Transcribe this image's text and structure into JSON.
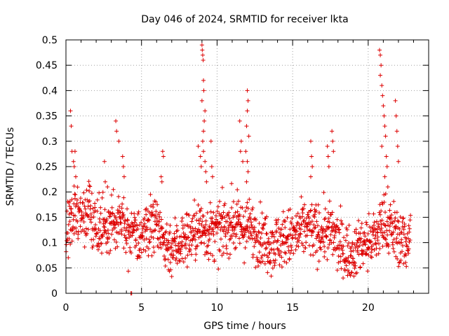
{
  "chart_data": {
    "type": "scatter",
    "title": "Day 046 of 2024, SRMTID for receiver lkta",
    "xlabel": "GPS time / hours",
    "ylabel": "SRMTID / TECUs",
    "xlim": [
      0,
      24
    ],
    "ylim": [
      0,
      0.5
    ],
    "grid": true,
    "marker": "+",
    "color": "#dd0000",
    "x_ticks": [
      0,
      5,
      10,
      15,
      20
    ],
    "x_tick_labels": [
      "0",
      "5",
      "10",
      "15",
      "20"
    ],
    "y_ticks": [
      0,
      0.05,
      0.1,
      0.15,
      0.2,
      0.25,
      0.3,
      0.35,
      0.4,
      0.45,
      0.5
    ],
    "y_tick_labels": [
      "0",
      "0.05",
      "0.1",
      "0.15",
      "0.2",
      "0.25",
      "0.3",
      "0.35",
      "0.4",
      "0.45",
      "0.5"
    ],
    "series": [
      {
        "name": "SRMTID",
        "baseline": [
          [
            0.0,
            0.12
          ],
          [
            0.5,
            0.15
          ],
          [
            1.0,
            0.16
          ],
          [
            1.5,
            0.17
          ],
          [
            2.0,
            0.12
          ],
          [
            2.5,
            0.13
          ],
          [
            3.0,
            0.14
          ],
          [
            3.5,
            0.14
          ],
          [
            4.0,
            0.13
          ],
          [
            4.5,
            0.12
          ],
          [
            5.0,
            0.11
          ],
          [
            5.5,
            0.13
          ],
          [
            6.0,
            0.13
          ],
          [
            6.5,
            0.1
          ],
          [
            7.0,
            0.09
          ],
          [
            7.5,
            0.1
          ],
          [
            8.0,
            0.11
          ],
          [
            8.5,
            0.12
          ],
          [
            9.0,
            0.13
          ],
          [
            9.5,
            0.12
          ],
          [
            10.0,
            0.12
          ],
          [
            10.5,
            0.13
          ],
          [
            11.0,
            0.14
          ],
          [
            11.5,
            0.13
          ],
          [
            12.0,
            0.13
          ],
          [
            12.5,
            0.12
          ],
          [
            13.0,
            0.11
          ],
          [
            13.5,
            0.1
          ],
          [
            14.0,
            0.1
          ],
          [
            14.5,
            0.11
          ],
          [
            15.0,
            0.11
          ],
          [
            15.5,
            0.12
          ],
          [
            16.0,
            0.13
          ],
          [
            16.5,
            0.12
          ],
          [
            17.0,
            0.12
          ],
          [
            17.5,
            0.12
          ],
          [
            18.0,
            0.1
          ],
          [
            18.5,
            0.08
          ],
          [
            19.0,
            0.08
          ],
          [
            19.5,
            0.1
          ],
          [
            20.0,
            0.1
          ],
          [
            20.5,
            0.11
          ],
          [
            21.0,
            0.14
          ],
          [
            21.5,
            0.13
          ],
          [
            22.0,
            0.11
          ],
          [
            22.5,
            0.1
          ],
          [
            22.8,
            0.12
          ]
        ],
        "spikes": [
          [
            0.3,
            0.36
          ],
          [
            0.35,
            0.33
          ],
          [
            0.4,
            0.28
          ],
          [
            0.5,
            0.26
          ],
          [
            0.6,
            0.28
          ],
          [
            0.55,
            0.25
          ],
          [
            0.65,
            0.23
          ],
          [
            2.55,
            0.26
          ],
          [
            2.6,
            0.22
          ],
          [
            2.75,
            0.21
          ],
          [
            3.3,
            0.34
          ],
          [
            3.35,
            0.32
          ],
          [
            3.5,
            0.3
          ],
          [
            3.75,
            0.27
          ],
          [
            3.8,
            0.25
          ],
          [
            3.85,
            0.23
          ],
          [
            6.4,
            0.28
          ],
          [
            6.45,
            0.27
          ],
          [
            6.3,
            0.23
          ],
          [
            6.35,
            0.22
          ],
          [
            8.75,
            0.29
          ],
          [
            8.9,
            0.27
          ],
          [
            8.95,
            0.25
          ],
          [
            9.0,
            0.49
          ],
          [
            9.02,
            0.48
          ],
          [
            9.05,
            0.47
          ],
          [
            9.08,
            0.46
          ],
          [
            9.1,
            0.42
          ],
          [
            9.12,
            0.4
          ],
          [
            9.0,
            0.38
          ],
          [
            9.2,
            0.36
          ],
          [
            9.15,
            0.34
          ],
          [
            9.1,
            0.32
          ],
          [
            9.05,
            0.3
          ],
          [
            9.1,
            0.28
          ],
          [
            9.2,
            0.26
          ],
          [
            9.25,
            0.24
          ],
          [
            9.3,
            0.22
          ],
          [
            9.6,
            0.3
          ],
          [
            9.65,
            0.25
          ],
          [
            9.7,
            0.23
          ],
          [
            11.5,
            0.34
          ],
          [
            11.6,
            0.3
          ],
          [
            11.55,
            0.28
          ],
          [
            11.7,
            0.26
          ],
          [
            12.0,
            0.4
          ],
          [
            12.05,
            0.38
          ],
          [
            12.0,
            0.36
          ],
          [
            11.95,
            0.33
          ],
          [
            12.1,
            0.31
          ],
          [
            11.9,
            0.28
          ],
          [
            12.0,
            0.26
          ],
          [
            12.05,
            0.24
          ],
          [
            11.95,
            0.22
          ],
          [
            16.2,
            0.3
          ],
          [
            16.25,
            0.27
          ],
          [
            16.3,
            0.25
          ],
          [
            16.2,
            0.23
          ],
          [
            17.3,
            0.29
          ],
          [
            17.35,
            0.27
          ],
          [
            17.4,
            0.25
          ],
          [
            17.6,
            0.32
          ],
          [
            17.65,
            0.3
          ],
          [
            17.7,
            0.28
          ],
          [
            20.75,
            0.48
          ],
          [
            20.8,
            0.47
          ],
          [
            20.85,
            0.45
          ],
          [
            20.8,
            0.43
          ],
          [
            20.9,
            0.41
          ],
          [
            20.95,
            0.39
          ],
          [
            21.0,
            0.37
          ],
          [
            21.05,
            0.35
          ],
          [
            21.1,
            0.33
          ],
          [
            21.15,
            0.31
          ],
          [
            20.9,
            0.29
          ],
          [
            21.2,
            0.27
          ],
          [
            21.25,
            0.25
          ],
          [
            21.1,
            0.23
          ],
          [
            21.3,
            0.21
          ],
          [
            21.8,
            0.38
          ],
          [
            21.85,
            0.35
          ],
          [
            21.9,
            0.32
          ],
          [
            21.95,
            0.29
          ],
          [
            22.0,
            0.26
          ]
        ],
        "outliers": [
          [
            4.3,
            0.0
          ],
          [
            4.35,
            0.0
          ]
        ]
      }
    ]
  }
}
